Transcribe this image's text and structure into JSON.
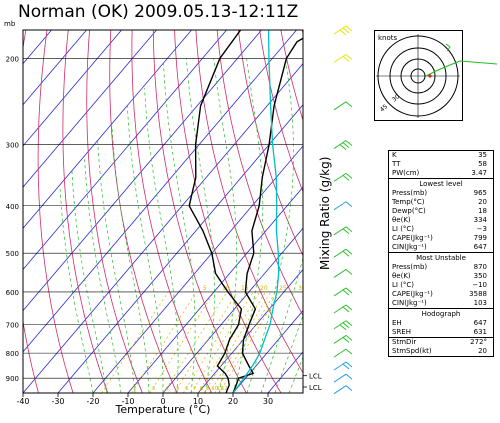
{
  "title": "Norman (OK) 2009.05.13-12:11Z",
  "pressure_unit": "mb",
  "xlabel": "Temperature (°C)",
  "ylabel": "Mixing Ratio (g/kg)",
  "hodograph_unit": "knots",
  "chart_data": {
    "type": "line",
    "title": "Norman (OK) 2009.05.13-12:11Z",
    "xlabel": "Temperature (°C)",
    "ylabel": "Mixing Ratio (g/kg)",
    "xlim": [
      -40,
      40
    ],
    "ylim_mb": [
      965,
      175
    ],
    "x_ticks": [
      -40,
      -30,
      -20,
      -10,
      0,
      10,
      20,
      30
    ],
    "p_ticks": [
      200,
      300,
      400,
      500,
      600,
      700,
      800,
      900
    ],
    "y_scale": "log",
    "series": [
      {
        "points": [
          [
            965,
            20
          ],
          [
            930,
            19
          ],
          [
            900,
            18
          ],
          [
            880,
            21
          ],
          [
            850,
            18
          ],
          [
            800,
            13
          ],
          [
            750,
            10
          ],
          [
            700,
            8
          ],
          [
            650,
            6
          ],
          [
            600,
            -1
          ],
          [
            550,
            -5
          ],
          [
            500,
            -8
          ],
          [
            450,
            -14
          ],
          [
            400,
            -18
          ],
          [
            350,
            -24
          ],
          [
            300,
            -30
          ],
          [
            250,
            -38
          ],
          [
            200,
            -46
          ],
          [
            185,
            -47
          ],
          [
            175,
            -44
          ]
        ]
      },
      {
        "points": [
          [
            965,
            18
          ],
          [
            930,
            17
          ],
          [
            900,
            15
          ],
          [
            880,
            13
          ],
          [
            850,
            9
          ],
          [
            800,
            8
          ],
          [
            750,
            6
          ],
          [
            700,
            5
          ],
          [
            650,
            2
          ],
          [
            600,
            -6
          ],
          [
            550,
            -14
          ],
          [
            500,
            -20
          ],
          [
            450,
            -28
          ],
          [
            400,
            -38
          ],
          [
            350,
            -43
          ],
          [
            300,
            -51
          ],
          [
            250,
            -59
          ],
          [
            200,
            -65
          ],
          [
            175,
            -66
          ]
        ]
      },
      {
        "points": [
          [
            965,
            20
          ],
          [
            900,
            19.5
          ],
          [
            850,
            19
          ],
          [
            800,
            18
          ],
          [
            750,
            16
          ],
          [
            700,
            14
          ],
          [
            650,
            11
          ],
          [
            600,
            8
          ],
          [
            550,
            4
          ],
          [
            500,
            -1
          ],
          [
            450,
            -7
          ],
          [
            400,
            -13
          ],
          [
            350,
            -20
          ],
          [
            300,
            -29
          ],
          [
            250,
            -39
          ],
          [
            200,
            -51
          ],
          [
            175,
            -58
          ]
        ]
      }
    ],
    "mixing_ratio_labels": [
      "1",
      "2",
      "3",
      "4",
      "5",
      "6",
      "7",
      "8",
      "9",
      "10",
      "11",
      "12"
    ],
    "mixing_ratio_markers": [
      "5",
      "10",
      "15",
      "20",
      "25",
      "30"
    ],
    "lcl_labels": [
      "LCL",
      "LCL"
    ],
    "hodograph_ring_labels": [
      "30",
      "45"
    ]
  },
  "indices": [
    {
      "k": "K",
      "v": "35"
    },
    {
      "k": "TT",
      "v": "58"
    },
    {
      "k": "PW(cm)",
      "v": "3.47"
    }
  ],
  "lowest": {
    "header": "Lowest level",
    "rows": [
      {
        "k": "Press(mb)",
        "v": "965"
      },
      {
        "k": "Temp(°C)",
        "v": "20"
      },
      {
        "k": "Dewp(°C)",
        "v": "18"
      },
      {
        "k": "θe(K)",
        "v": "334"
      },
      {
        "k": "LI (°C)",
        "v": "−3"
      },
      {
        "k": "CAPE(Jkg⁻¹)",
        "v": "799"
      },
      {
        "k": "CIN(Jkg⁻¹)",
        "v": "647"
      }
    ]
  },
  "unstable": {
    "header": "Most Unstable",
    "rows": [
      {
        "k": "Press(mb)",
        "v": "870"
      },
      {
        "k": "θe(K)",
        "v": "350"
      },
      {
        "k": "LI (°C)",
        "v": "−10"
      },
      {
        "k": "CAPE(Jkg⁻¹)",
        "v": "3588"
      },
      {
        "k": "CIN(Jkg⁻¹)",
        "v": "103"
      }
    ]
  },
  "hodo_panel": {
    "header": "Hodograph",
    "rows": [
      {
        "k": "EH",
        "v": "647"
      },
      {
        "k": "SREH",
        "v": "631"
      }
    ],
    "rows2": [
      {
        "k": "StmDir",
        "v": "272°"
      },
      {
        "k": "StmSpd(kt)",
        "v": "20"
      }
    ]
  },
  "colors": {
    "temp": "#000000",
    "dewpoint": "#000000",
    "parcel": "#00c0c0",
    "isotherm": "#2a2ad0",
    "dry_adiabat": "#d02a6a",
    "moist_adiabat": "#20c020",
    "mixing_ratio": "#d4b400",
    "barb_yellow": "#e6e600",
    "barb_green": "#30c030",
    "barb_cyan": "#20a0e0"
  }
}
